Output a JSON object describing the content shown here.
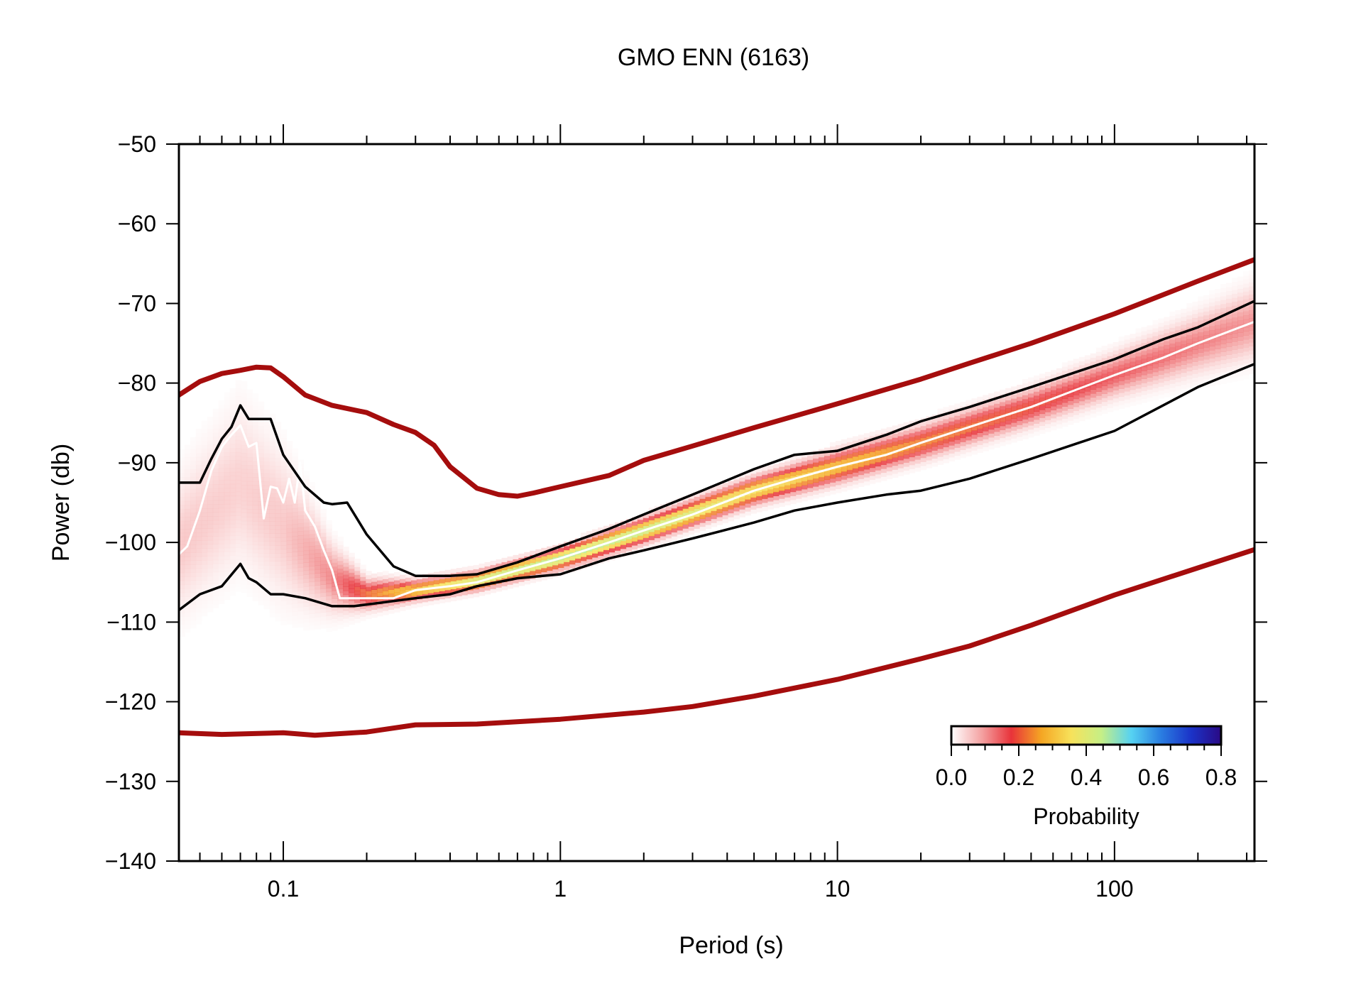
{
  "chart_data": {
    "type": "heatmap",
    "title": "GMO ENN (6163)",
    "xlabel": "Period (s)",
    "ylabel": "Power (db)",
    "x_scale": "log",
    "xlim": [
      0.042,
      320
    ],
    "ylim": [
      -140,
      -50
    ],
    "x_ticks": [
      0.1,
      1,
      10,
      100
    ],
    "x_tick_labels": [
      "0.1",
      "1",
      "10",
      "100"
    ],
    "y_ticks": [
      -50,
      -60,
      -70,
      -80,
      -90,
      -100,
      -110,
      -120,
      -130,
      -140
    ],
    "y_tick_labels": [
      "−50",
      "−60",
      "−70",
      "−80",
      "−90",
      "−100",
      "−110",
      "−120",
      "−130",
      "−140"
    ],
    "grid": false,
    "colorbar": {
      "label": "Probability",
      "range": [
        0,
        0.8
      ],
      "ticks": [
        0.0,
        0.2,
        0.4,
        0.6,
        0.8
      ],
      "tick_labels": [
        "0.0",
        "0.2",
        "0.4",
        "0.6",
        "0.8"
      ],
      "placement": "bottom-right",
      "colors": [
        "#ffffff",
        "#f4a3a3",
        "#e8333a",
        "#f5a623",
        "#f7e25b",
        "#c6ef86",
        "#56d2f2",
        "#2a7de1",
        "#1b33c8",
        "#2a0a85"
      ]
    },
    "series": [
      {
        "role": "high noise model",
        "color": "#a50d0d",
        "x": [
          0.042,
          0.05,
          0.06,
          0.07,
          0.08,
          0.09,
          0.1,
          0.12,
          0.15,
          0.2,
          0.25,
          0.3,
          0.35,
          0.4,
          0.5,
          0.6,
          0.7,
          0.8,
          1,
          1.5,
          2,
          3,
          5,
          10,
          20,
          30,
          50,
          100,
          200,
          320
        ],
        "y": [
          -81.5,
          -79.8,
          -78.8,
          -78.4,
          -78.0,
          -78.1,
          -79.2,
          -81.5,
          -82.8,
          -83.7,
          -85.2,
          -86.2,
          -87.8,
          -90.5,
          -93.2,
          -94.0,
          -94.2,
          -93.8,
          -93.0,
          -91.6,
          -89.7,
          -87.9,
          -85.6,
          -82.6,
          -79.5,
          -77.5,
          -75.0,
          -71.3,
          -67.2,
          -64.5
        ]
      },
      {
        "role": "low noise model",
        "color": "#a50d0d",
        "x": [
          0.042,
          0.06,
          0.1,
          0.13,
          0.2,
          0.3,
          0.5,
          1,
          2,
          3,
          5,
          10,
          20,
          30,
          50,
          100,
          200,
          320
        ],
        "y": [
          -123.9,
          -124.1,
          -123.9,
          -124.2,
          -123.8,
          -122.9,
          -122.8,
          -122.2,
          -121.3,
          -120.6,
          -119.3,
          -117.2,
          -114.6,
          -113.0,
          -110.4,
          -106.6,
          -103.2,
          -100.9
        ]
      },
      {
        "role": "median",
        "color": "#ffffff",
        "x": [
          0.042,
          0.045,
          0.05,
          0.055,
          0.06,
          0.065,
          0.07,
          0.075,
          0.08,
          0.085,
          0.09,
          0.095,
          0.1,
          0.105,
          0.11,
          0.115,
          0.12,
          0.13,
          0.14,
          0.15,
          0.16,
          0.18,
          0.2,
          0.25,
          0.3,
          0.4,
          0.5,
          0.7,
          1,
          1.5,
          2,
          3,
          5,
          7,
          10,
          15,
          20,
          30,
          50,
          100,
          150,
          200,
          320
        ],
        "y": [
          -101.5,
          -100.5,
          -96.0,
          -91.0,
          -88.0,
          -86.5,
          -85.3,
          -88.0,
          -87.5,
          -97.0,
          -93.0,
          -93.2,
          -95.0,
          -92.0,
          -95.0,
          -90.0,
          -96.0,
          -98.0,
          -101.0,
          -103.5,
          -107.0,
          -107.0,
          -107.0,
          -107.0,
          -106.0,
          -105.5,
          -105.0,
          -103.5,
          -102.0,
          -100.0,
          -98.5,
          -96.5,
          -93.5,
          -92.0,
          -90.5,
          -89.0,
          -87.5,
          -85.5,
          -83.0,
          -79.0,
          -76.8,
          -75.0,
          -72.3
        ]
      },
      {
        "role": "upper envelope",
        "color": "#000000",
        "x": [
          0.042,
          0.05,
          0.055,
          0.06,
          0.065,
          0.07,
          0.075,
          0.08,
          0.09,
          0.1,
          0.12,
          0.14,
          0.15,
          0.17,
          0.2,
          0.25,
          0.3,
          0.4,
          0.5,
          0.7,
          1,
          1.5,
          2,
          3,
          5,
          7,
          10,
          15,
          20,
          30,
          50,
          100,
          150,
          200,
          320
        ],
        "y": [
          -92.5,
          -92.5,
          -89.5,
          -87.0,
          -85.5,
          -82.8,
          -84.5,
          -84.5,
          -84.5,
          -89.0,
          -93.0,
          -95.0,
          -95.2,
          -95.0,
          -99.0,
          -103.0,
          -104.2,
          -104.2,
          -104.0,
          -102.5,
          -100.5,
          -98.3,
          -96.5,
          -94.0,
          -90.8,
          -89.0,
          -88.5,
          -86.5,
          -84.8,
          -83.0,
          -80.5,
          -77.0,
          -74.5,
          -73.0,
          -69.7
        ]
      },
      {
        "role": "lower envelope",
        "color": "#000000",
        "x": [
          0.042,
          0.05,
          0.06,
          0.07,
          0.075,
          0.08,
          0.09,
          0.1,
          0.12,
          0.15,
          0.18,
          0.2,
          0.3,
          0.4,
          0.5,
          0.7,
          1,
          1.5,
          2,
          3,
          5,
          7,
          10,
          15,
          20,
          30,
          50,
          100,
          200,
          320
        ],
        "y": [
          -108.5,
          -106.5,
          -105.5,
          -102.7,
          -104.5,
          -105.0,
          -106.5,
          -106.5,
          -107.0,
          -108.0,
          -108.0,
          -107.8,
          -107.0,
          -106.5,
          -105.5,
          -104.5,
          -104.0,
          -102.0,
          -101.0,
          -99.5,
          -97.5,
          -96.0,
          -95.0,
          -94.0,
          -93.5,
          -92.0,
          -89.5,
          -86.0,
          -80.5,
          -77.6
        ]
      }
    ],
    "density_band": {
      "x": [
        0.042,
        0.07,
        0.1,
        0.15,
        0.2,
        0.3,
        0.5,
        1,
        2,
        5,
        10,
        20,
        50,
        100,
        200,
        320
      ],
      "center": [
        -100.5,
        -92.5,
        -98.0,
        -104.5,
        -106.5,
        -106.0,
        -104.8,
        -102.0,
        -98.5,
        -93.5,
        -90.5,
        -87.5,
        -83.0,
        -79.0,
        -75.0,
        -72.3
      ],
      "half_width": [
        8.0,
        9.5,
        8.5,
        4.0,
        1.8,
        1.2,
        1.1,
        1.2,
        1.4,
        1.6,
        1.9,
        2.0,
        2.2,
        2.6,
        3.4,
        4.2
      ],
      "peak_probability": [
        0.06,
        0.05,
        0.06,
        0.12,
        0.22,
        0.32,
        0.42,
        0.46,
        0.44,
        0.36,
        0.3,
        0.24,
        0.2,
        0.16,
        0.13,
        0.11
      ]
    }
  }
}
